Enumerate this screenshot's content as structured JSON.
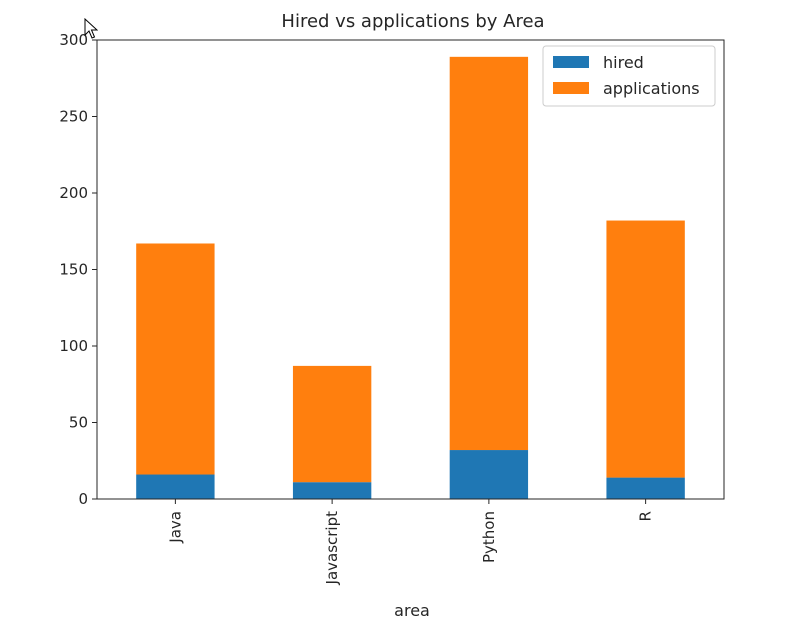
{
  "chart_data": {
    "type": "bar",
    "stacked": true,
    "title": "Hired vs applications by Area",
    "xlabel": "area",
    "ylabel": "",
    "categories": [
      "Java",
      "Javascript",
      "Python",
      "R"
    ],
    "series": [
      {
        "name": "hired",
        "color": "#1f77b4",
        "values": [
          16,
          11,
          32,
          14
        ]
      },
      {
        "name": "applications",
        "color": "#ff7f0e",
        "values": [
          151,
          76,
          257,
          168
        ]
      }
    ],
    "ylim": [
      0,
      300
    ],
    "yticks": [
      0,
      50,
      100,
      150,
      200,
      250,
      300
    ],
    "grid": false,
    "legend_position": "top-right"
  },
  "icons": {
    "cursor": "mouse-pointer-icon"
  }
}
